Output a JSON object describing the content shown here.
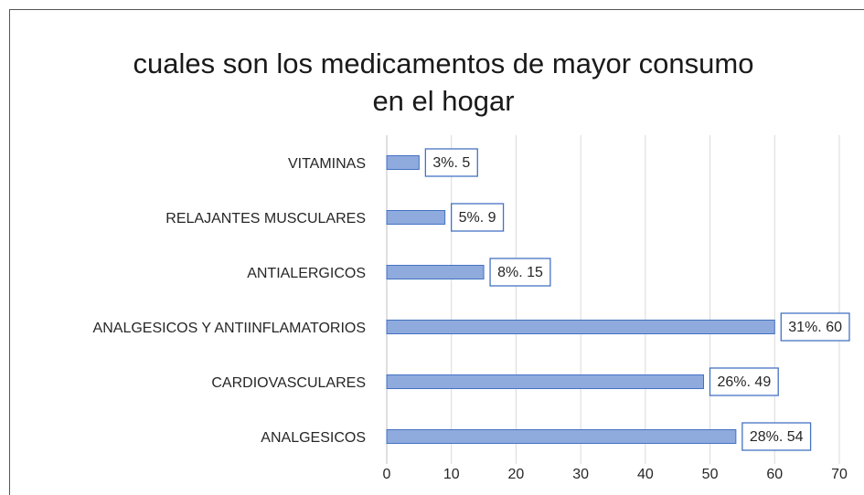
{
  "chart_data": {
    "type": "barh",
    "title": [
      "cuales son los medicamentos de mayor consumo",
      "en el hogar"
    ],
    "categories": [
      "VITAMINAS",
      "RELAJANTES MUSCULARES",
      "ANTIALERGICOS",
      "ANALGESICOS Y ANTIINFLAMATORIOS",
      "CARDIOVASCULARES",
      "ANALGESICOS"
    ],
    "values": [
      5,
      9,
      15,
      60,
      49,
      54
    ],
    "value_labels": [
      "3%. 5",
      "5%. 9",
      "8%. 15",
      "31%. 60",
      "26%. 49",
      "28%. 54"
    ],
    "color": "#8faadc",
    "xlim": [
      0,
      70
    ],
    "xticks": [
      0,
      10,
      20,
      30,
      40,
      50,
      60,
      70
    ],
    "grid": true
  }
}
